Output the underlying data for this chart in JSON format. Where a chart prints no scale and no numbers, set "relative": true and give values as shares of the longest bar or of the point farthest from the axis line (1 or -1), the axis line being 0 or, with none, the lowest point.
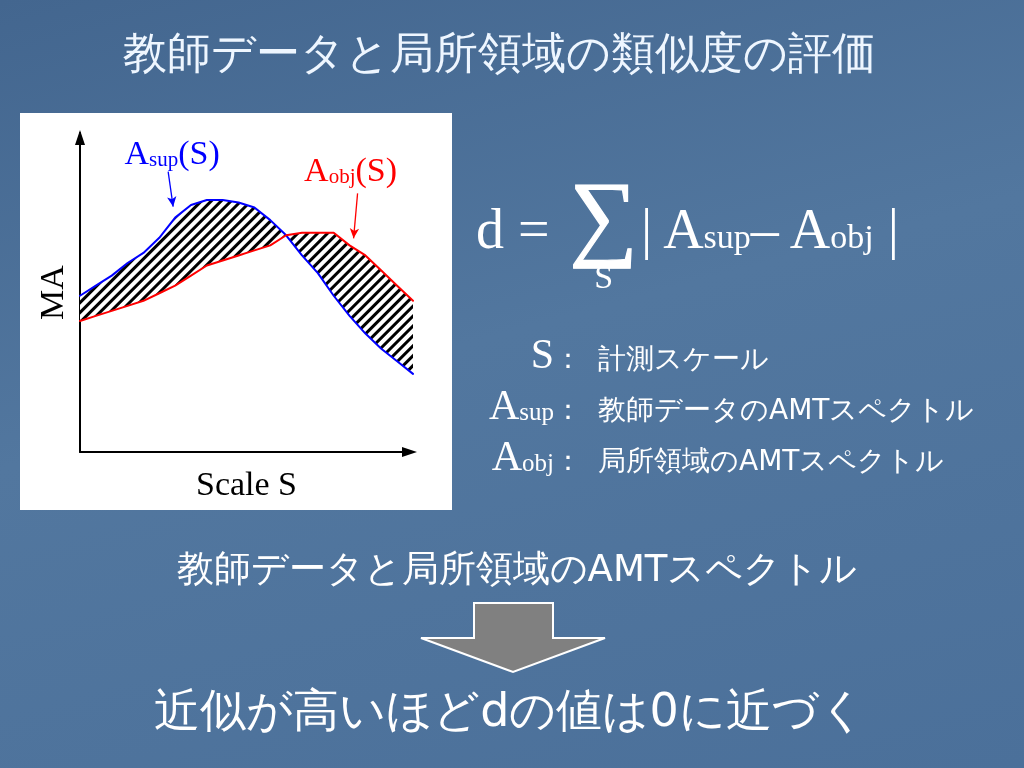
{
  "chart_data": {
    "type": "line",
    "title": "教師データと局所領域の類似度の評価",
    "xlabel": "Scale S",
    "ylabel": "MA",
    "relative": true,
    "marker": "none",
    "line_style": "solid",
    "categories": [
      null,
      null,
      null,
      null,
      null,
      null,
      null,
      null,
      null,
      null,
      null,
      null,
      null,
      null,
      null,
      null,
      null,
      null,
      null,
      null,
      null,
      null
    ],
    "series": [
      {
        "name": "A$_{sup}$(S)",
        "color": "#0000ff",
        "values": [
          0.62,
          0.66,
          0.7,
          0.75,
          0.79,
          0.85,
          0.93,
          0.98,
          1.0,
          1.0,
          0.99,
          0.97,
          0.92,
          0.86,
          0.78,
          0.71,
          0.62,
          0.54,
          0.47,
          0.41,
          0.36,
          0.31
        ],
        "lower": [
          0.52,
          0.54,
          0.56,
          0.58,
          0.6,
          0.63,
          0.66,
          0.7,
          0.74,
          0.76,
          0.78,
          0.8,
          0.82,
          0.86,
          0.78,
          0.71,
          0.62,
          0.54,
          0.47,
          0.41,
          0.36,
          0.31
        ],
        "upper": [
          0.62,
          0.66,
          0.7,
          0.75,
          0.79,
          0.85,
          0.93,
          0.98,
          1.0,
          1.0,
          0.99,
          0.97,
          0.92,
          0.86,
          0.87,
          0.87,
          0.87,
          0.82,
          0.78,
          0.72,
          0.66,
          0.6
        ]
      },
      {
        "name": "A$_{obj}$(S)",
        "color": "#ff0000",
        "values": [
          0.52,
          0.54,
          0.56,
          0.58,
          0.6,
          0.63,
          0.66,
          0.7,
          0.74,
          0.76,
          0.78,
          0.8,
          0.82,
          0.86,
          0.87,
          0.87,
          0.87,
          0.82,
          0.78,
          0.72,
          0.66,
          0.6
        ]
      }
    ],
    "annotations": [
      "d = ∑$_{S}$| A$_{sup}$– A$_{obj}$ |",
      "S： 計測スケール",
      "A$_{sup}$： 教師データのAMTスペクトル",
      "A$_{obj}$： 局所領域のAMTスペクトル",
      "教師データと局所領域のAMTスペクトル",
      "近似が高いほどdの値は0に近づく"
    ]
  }
}
